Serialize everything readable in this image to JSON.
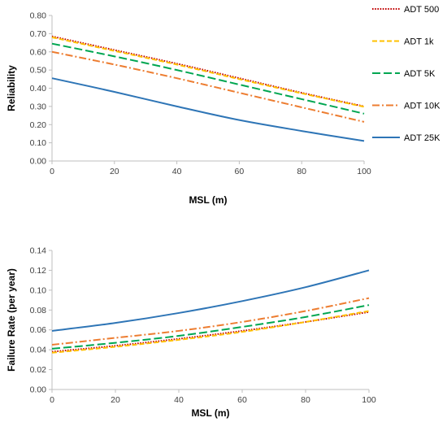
{
  "chart_data": [
    {
      "type": "line",
      "xlabel": "MSL (m)",
      "ylabel": "Reliability",
      "xlim": [
        0,
        100
      ],
      "ylim": [
        0,
        0.8
      ],
      "xticks": [
        "0",
        "20",
        "40",
        "60",
        "80",
        "100"
      ],
      "yticks": [
        "0.00",
        "0.10",
        "0.20",
        "0.30",
        "0.40",
        "0.50",
        "0.60",
        "0.70",
        "0.80"
      ],
      "grid": false,
      "legend": "right",
      "x": [
        0,
        20,
        40,
        60,
        80,
        100
      ],
      "series": [
        {
          "name": "ADT 500",
          "color": "#C00000",
          "dash": "dotted",
          "values": [
            0.685,
            0.61,
            0.535,
            0.455,
            0.375,
            0.3
          ]
        },
        {
          "name": "ADT 1k",
          "color": "#FFC000",
          "dash": "dashed",
          "values": [
            0.68,
            0.605,
            0.53,
            0.45,
            0.372,
            0.298
          ]
        },
        {
          "name": "ADT 5K",
          "color": "#00A651",
          "dash": "long-dash",
          "values": [
            0.645,
            0.575,
            0.5,
            0.42,
            0.34,
            0.26
          ]
        },
        {
          "name": "ADT 10K",
          "color": "#ED7D31",
          "dash": "dash-dot",
          "values": [
            0.6,
            0.53,
            0.455,
            0.375,
            0.295,
            0.215
          ]
        },
        {
          "name": "ADT 25K",
          "color": "#2E75B6",
          "dash": "solid",
          "values": [
            0.455,
            0.38,
            0.3,
            0.225,
            0.165,
            0.11
          ]
        }
      ]
    },
    {
      "type": "line",
      "xlabel": "MSL (m)",
      "ylabel": "Failure Rate (per year)",
      "xlim": [
        0,
        100
      ],
      "ylim": [
        0,
        0.14
      ],
      "xticks": [
        "0",
        "20",
        "40",
        "60",
        "80",
        "100"
      ],
      "yticks": [
        "0.00",
        "0.02",
        "0.04",
        "0.06",
        "0.08",
        "0.10",
        "0.12",
        "0.14"
      ],
      "grid": false,
      "x": [
        0,
        20,
        40,
        60,
        80,
        100
      ],
      "series": [
        {
          "color": "#C00000",
          "dash": "dotted",
          "values": [
            0.038,
            0.044,
            0.051,
            0.059,
            0.068,
            0.078
          ]
        },
        {
          "color": "#FFC000",
          "dash": "dashed",
          "values": [
            0.037,
            0.043,
            0.05,
            0.058,
            0.068,
            0.079
          ]
        },
        {
          "color": "#00A651",
          "dash": "long-dash",
          "values": [
            0.041,
            0.047,
            0.054,
            0.063,
            0.073,
            0.085
          ]
        },
        {
          "color": "#ED7D31",
          "dash": "dash-dot",
          "values": [
            0.045,
            0.052,
            0.059,
            0.068,
            0.079,
            0.092
          ]
        },
        {
          "color": "#2E75B6",
          "dash": "solid",
          "values": [
            0.059,
            0.067,
            0.077,
            0.089,
            0.103,
            0.12
          ]
        }
      ]
    }
  ]
}
